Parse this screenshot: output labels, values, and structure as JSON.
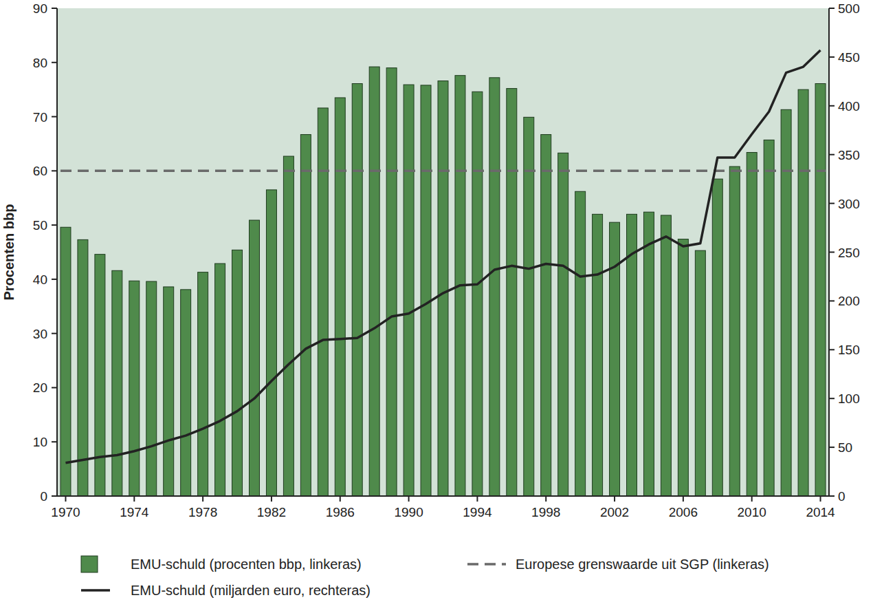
{
  "chart_data": {
    "type": "bar",
    "y_label": "Procenten bbp",
    "x": [
      1970,
      1971,
      1972,
      1973,
      1974,
      1975,
      1976,
      1977,
      1978,
      1979,
      1980,
      1981,
      1982,
      1983,
      1984,
      1985,
      1986,
      1987,
      1988,
      1989,
      1990,
      1991,
      1992,
      1993,
      1994,
      1995,
      1996,
      1997,
      1998,
      1999,
      2000,
      2001,
      2002,
      2003,
      2004,
      2005,
      2006,
      2007,
      2008,
      2009,
      2010,
      2011,
      2012,
      2013,
      2014
    ],
    "xlim": [
      1969.5,
      2014.5
    ],
    "xticks": [
      1970,
      1974,
      1978,
      1982,
      1986,
      1990,
      1994,
      1998,
      2002,
      2006,
      2010,
      2014
    ],
    "ylim": [
      0,
      90
    ],
    "yticks": [
      0,
      10,
      20,
      30,
      40,
      50,
      60,
      70,
      80,
      90
    ],
    "y2lim": [
      0,
      500
    ],
    "y2ticks": [
      0,
      50,
      100,
      150,
      200,
      250,
      300,
      350,
      400,
      450,
      500
    ],
    "grid": false,
    "legend": "bottom",
    "series": [
      {
        "name": "EMU-schuld (procenten bbp, linkeras)",
        "type": "bar",
        "color": "#4f8a4b",
        "values": [
          49.6,
          47.3,
          44.6,
          41.6,
          39.7,
          39.6,
          38.6,
          38.1,
          41.3,
          42.9,
          45.4,
          50.9,
          56.5,
          62.7,
          66.7,
          71.6,
          73.5,
          76.1,
          79.2,
          79.0,
          75.9,
          75.8,
          76.6,
          77.6,
          74.6,
          77.2,
          75.2,
          69.9,
          66.7,
          63.3,
          56.2,
          52.0,
          50.5,
          52.0,
          52.4,
          51.8,
          47.4,
          45.3,
          58.5,
          60.8,
          63.4,
          65.7,
          71.3,
          75.0,
          76.1
        ]
      },
      {
        "name": "EMU-schuld (miljarden euro, rechteras)",
        "type": "line",
        "axis": "y2",
        "color": "#222222",
        "line_style": "solid",
        "values": [
          34,
          37,
          40,
          42,
          46,
          51,
          57,
          62,
          69,
          77,
          87,
          100,
          118,
          135,
          151,
          160,
          161,
          162,
          172,
          184,
          187,
          197,
          208,
          216,
          217,
          232,
          236,
          233,
          238,
          236,
          225,
          227,
          235,
          248,
          258,
          266,
          256,
          259,
          347,
          347,
          371,
          394,
          434,
          440,
          457
        ]
      }
    ],
    "reference_lines": [
      {
        "name": "Europese grenswaarde uit SGP (linkeras)",
        "value": 60,
        "color": "#6a6a6a",
        "line_style": "dashed"
      }
    ]
  }
}
